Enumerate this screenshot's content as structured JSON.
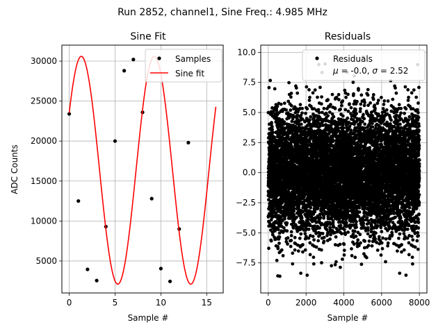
{
  "figure": {
    "suptitle": "Run 2852, channel1, Sine Freq.: 4.985 MHz"
  },
  "colors": {
    "samples": "#000000",
    "fit": "#ff0000",
    "residuals": "#000000",
    "grid": "#b0b0b0"
  },
  "chart_data": [
    {
      "type": "scatter",
      "title": "Sine Fit",
      "xlabel": "Sample #",
      "ylabel": "ADC Counts",
      "xlim": [
        -0.8,
        16.8
      ],
      "ylim": [
        1000,
        32000
      ],
      "xticks": [
        0,
        5,
        10,
        15
      ],
      "yticks": [
        5000,
        10000,
        15000,
        20000,
        25000,
        30000
      ],
      "grid": true,
      "legend_position": "top-right",
      "series": [
        {
          "name": "Samples",
          "kind": "scatter",
          "x": [
            0,
            1,
            2,
            3,
            4,
            5,
            6,
            7,
            8,
            9,
            10,
            11,
            12,
            13
          ],
          "y": [
            23400,
            12500,
            3950,
            2550,
            9300,
            20000,
            28800,
            30200,
            23600,
            12800,
            4050,
            2450,
            9000,
            19800
          ]
        },
        {
          "name": "Sine fit",
          "kind": "line",
          "model": {
            "amplitude": 14250,
            "offset": 16350,
            "period": 7.96,
            "phase": 0.528,
            "x_start": 0,
            "x_end": 16
          }
        }
      ]
    },
    {
      "type": "scatter",
      "title": "Residuals",
      "xlabel": "Sample #",
      "ylabel": "",
      "xlim": [
        -400,
        8400
      ],
      "ylim": [
        -10.0,
        10.6
      ],
      "xticks": [
        0,
        2000,
        4000,
        6000,
        8000
      ],
      "yticks": [
        -7.5,
        -5.0,
        -2.5,
        0.0,
        2.5,
        5.0,
        7.5,
        10.0
      ],
      "ytick_labels": [
        "−7.5",
        "−5.0",
        "−2.5",
        "0.0",
        "2.5",
        "5.0",
        "7.5",
        "10.0"
      ],
      "grid": true,
      "legend_position": "top-right",
      "series": [
        {
          "name": "Residuals",
          "kind": "scatter",
          "stats": {
            "mu": "-0.0",
            "sigma": "2.52"
          },
          "point_count": 8000,
          "distribution": "normal",
          "x_range": [
            0,
            8000
          ],
          "mean": 0.0,
          "std": 2.52
        }
      ]
    }
  ]
}
